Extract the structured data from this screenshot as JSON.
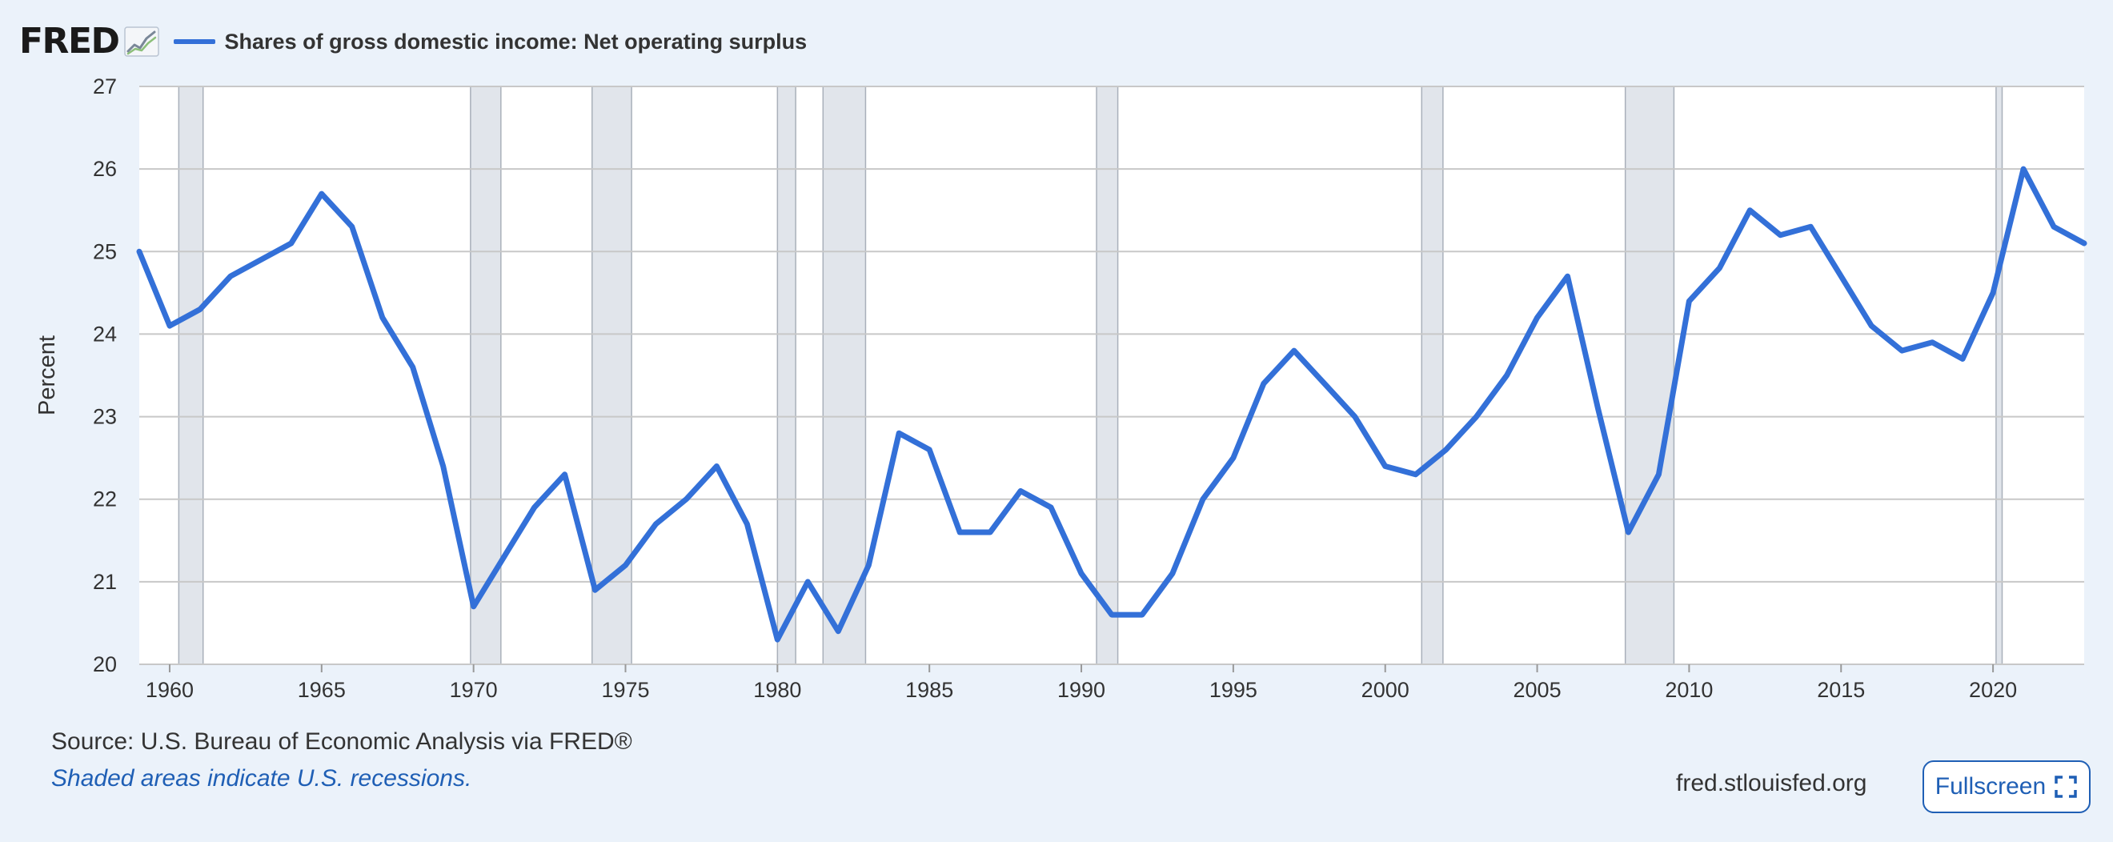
{
  "header": {
    "logo_text": "FRED",
    "logo_icon": "line-graph-icon",
    "legend_label": "Shares of gross domestic income: Net operating surplus"
  },
  "colors": {
    "series": "#3370d8",
    "recession_band": "#e1e5eb",
    "grid": "#c8c8c8",
    "page_background": "#ebf2fa",
    "plot_background": "#ffffff",
    "link": "#1f5fb5"
  },
  "chart_data": {
    "type": "line",
    "title": "",
    "xlabel": "",
    "ylabel": "Percent",
    "xlim": [
      1959,
      2023
    ],
    "ylim": [
      20,
      27
    ],
    "x_ticks": [
      "1960",
      "1965",
      "1970",
      "1975",
      "1980",
      "1985",
      "1990",
      "1995",
      "2000",
      "2005",
      "2010",
      "2015",
      "2020"
    ],
    "y_ticks": [
      "20",
      "21",
      "22",
      "23",
      "24",
      "25",
      "26",
      "27"
    ],
    "grid": "horizontal",
    "legend": "top-left",
    "series": [
      {
        "name": "Shares of gross domestic income: Net operating surplus",
        "x": [
          1959,
          1960,
          1961,
          1962,
          1963,
          1964,
          1965,
          1966,
          1967,
          1968,
          1969,
          1970,
          1971,
          1972,
          1973,
          1974,
          1975,
          1976,
          1977,
          1978,
          1979,
          1980,
          1981,
          1982,
          1983,
          1984,
          1985,
          1986,
          1987,
          1988,
          1989,
          1990,
          1991,
          1992,
          1993,
          1994,
          1995,
          1996,
          1997,
          1998,
          1999,
          2000,
          2001,
          2002,
          2003,
          2004,
          2005,
          2006,
          2007,
          2008,
          2009,
          2010,
          2011,
          2012,
          2013,
          2014,
          2015,
          2016,
          2017,
          2018,
          2019,
          2020,
          2021,
          2022,
          2023
        ],
        "values": [
          25.0,
          24.1,
          24.3,
          24.7,
          24.9,
          25.1,
          25.7,
          25.3,
          24.2,
          23.6,
          22.4,
          20.7,
          21.3,
          21.9,
          22.3,
          20.9,
          21.2,
          21.7,
          22.0,
          22.4,
          21.7,
          20.3,
          21.0,
          20.4,
          21.2,
          22.8,
          22.6,
          21.6,
          21.6,
          22.1,
          21.9,
          21.1,
          20.6,
          20.6,
          21.1,
          22.0,
          22.5,
          23.4,
          23.8,
          23.4,
          23.0,
          22.4,
          22.3,
          22.6,
          23.0,
          23.5,
          24.2,
          24.7,
          23.1,
          21.6,
          22.3,
          24.4,
          24.8,
          25.5,
          25.2,
          25.3,
          24.7,
          24.1,
          23.8,
          23.9,
          23.7,
          24.5,
          26.0,
          25.3,
          25.1
        ]
      }
    ],
    "recessions": [
      [
        1960.3,
        1961.1
      ],
      [
        1969.9,
        1970.9
      ],
      [
        1973.9,
        1975.2
      ],
      [
        1980.0,
        1980.6
      ],
      [
        1981.5,
        1982.9
      ],
      [
        1990.5,
        1991.2
      ],
      [
        2001.2,
        2001.9
      ],
      [
        2007.9,
        2009.5
      ],
      [
        2020.1,
        2020.3
      ]
    ]
  },
  "footer": {
    "source": "Source: U.S. Bureau of Economic Analysis via FRED®",
    "recession_note": "Shaded areas indicate U.S. recessions.",
    "site": "fred.stlouisfed.org",
    "fullscreen_label": "Fullscreen",
    "fullscreen_icon": "expand-icon"
  }
}
